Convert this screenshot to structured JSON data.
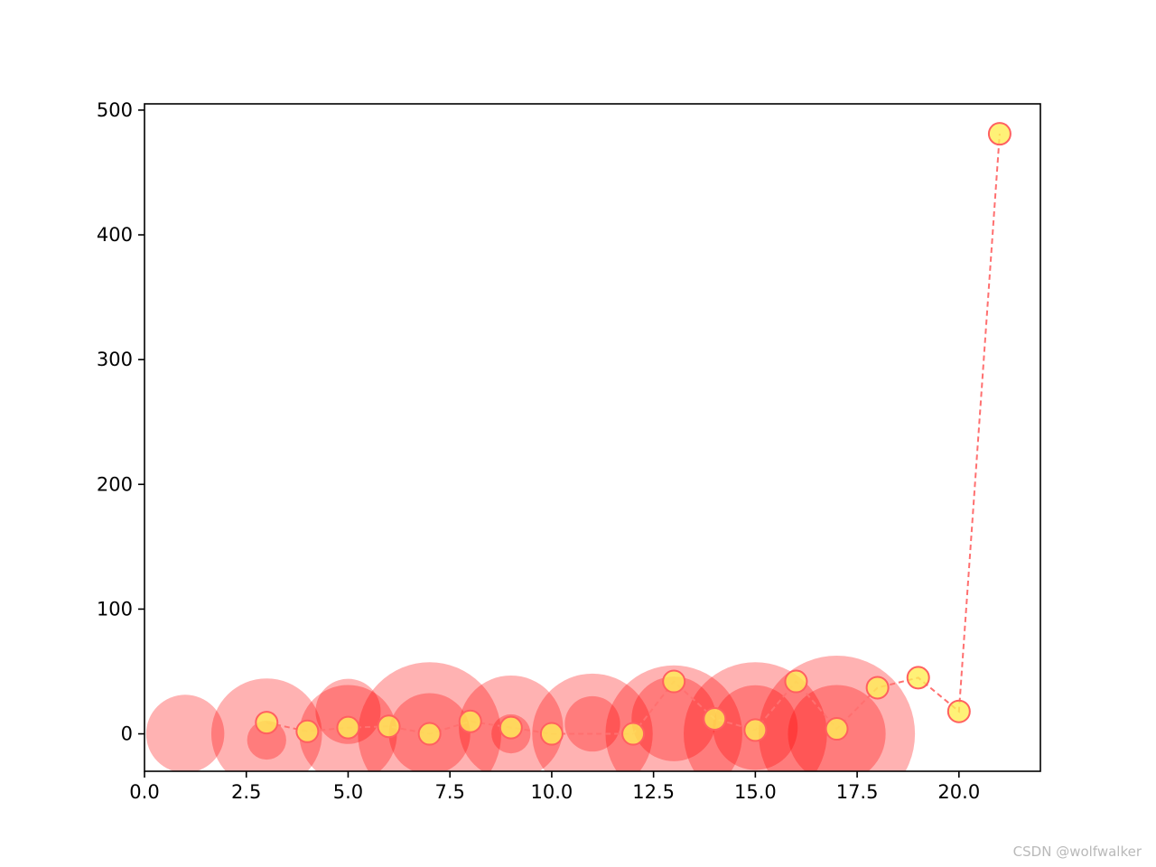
{
  "chart_data": {
    "type": "scatter",
    "title": "",
    "xlabel": "",
    "ylabel": "",
    "xlim": [
      0,
      22
    ],
    "ylim": [
      -30,
      505
    ],
    "x_ticks": [
      0.0,
      2.5,
      5.0,
      7.5,
      10.0,
      12.5,
      15.0,
      17.5,
      20.0
    ],
    "x_tick_labels": [
      "0.0",
      "2.5",
      "5.0",
      "7.5",
      "10.0",
      "12.5",
      "15.0",
      "17.5",
      "20.0"
    ],
    "y_ticks": [
      0,
      100,
      200,
      300,
      400,
      500
    ],
    "y_tick_labels": [
      "0",
      "100",
      "200",
      "300",
      "400",
      "500"
    ],
    "grid": false,
    "legend": "none",
    "bubbles": {
      "color": "#ff0000",
      "opacity": 0.3,
      "x": [
        1,
        3,
        3,
        5,
        5,
        7,
        7,
        9,
        9,
        11,
        11,
        13,
        13,
        15,
        15,
        17,
        17
      ],
      "y": [
        0,
        -5,
        0,
        0,
        18,
        0,
        0,
        5,
        0,
        0,
        8,
        0,
        12,
        0,
        5,
        0,
        0
      ],
      "size_radius_units": [
        2.4,
        1.2,
        3.4,
        3.0,
        2.0,
        4.4,
        2.5,
        3.2,
        1.2,
        3.7,
        1.7,
        4.2,
        2.6,
        4.4,
        2.6,
        4.8,
        3.0
      ]
    },
    "series": [
      {
        "x": [
          3,
          4,
          5,
          6,
          7,
          8,
          9,
          10,
          12,
          13,
          14,
          15,
          16,
          17,
          18,
          19,
          20,
          21
        ],
        "y": [
          9,
          2,
          5,
          6,
          0,
          10,
          5,
          0,
          0,
          42,
          12,
          3,
          42,
          4,
          37,
          45,
          18,
          481
        ],
        "line_color": "#ff7070",
        "line_style": "dashed",
        "marker_face": "#ffee55",
        "marker_edge": "#ff6060"
      }
    ]
  },
  "watermark": "CSDN @wolfwalker"
}
